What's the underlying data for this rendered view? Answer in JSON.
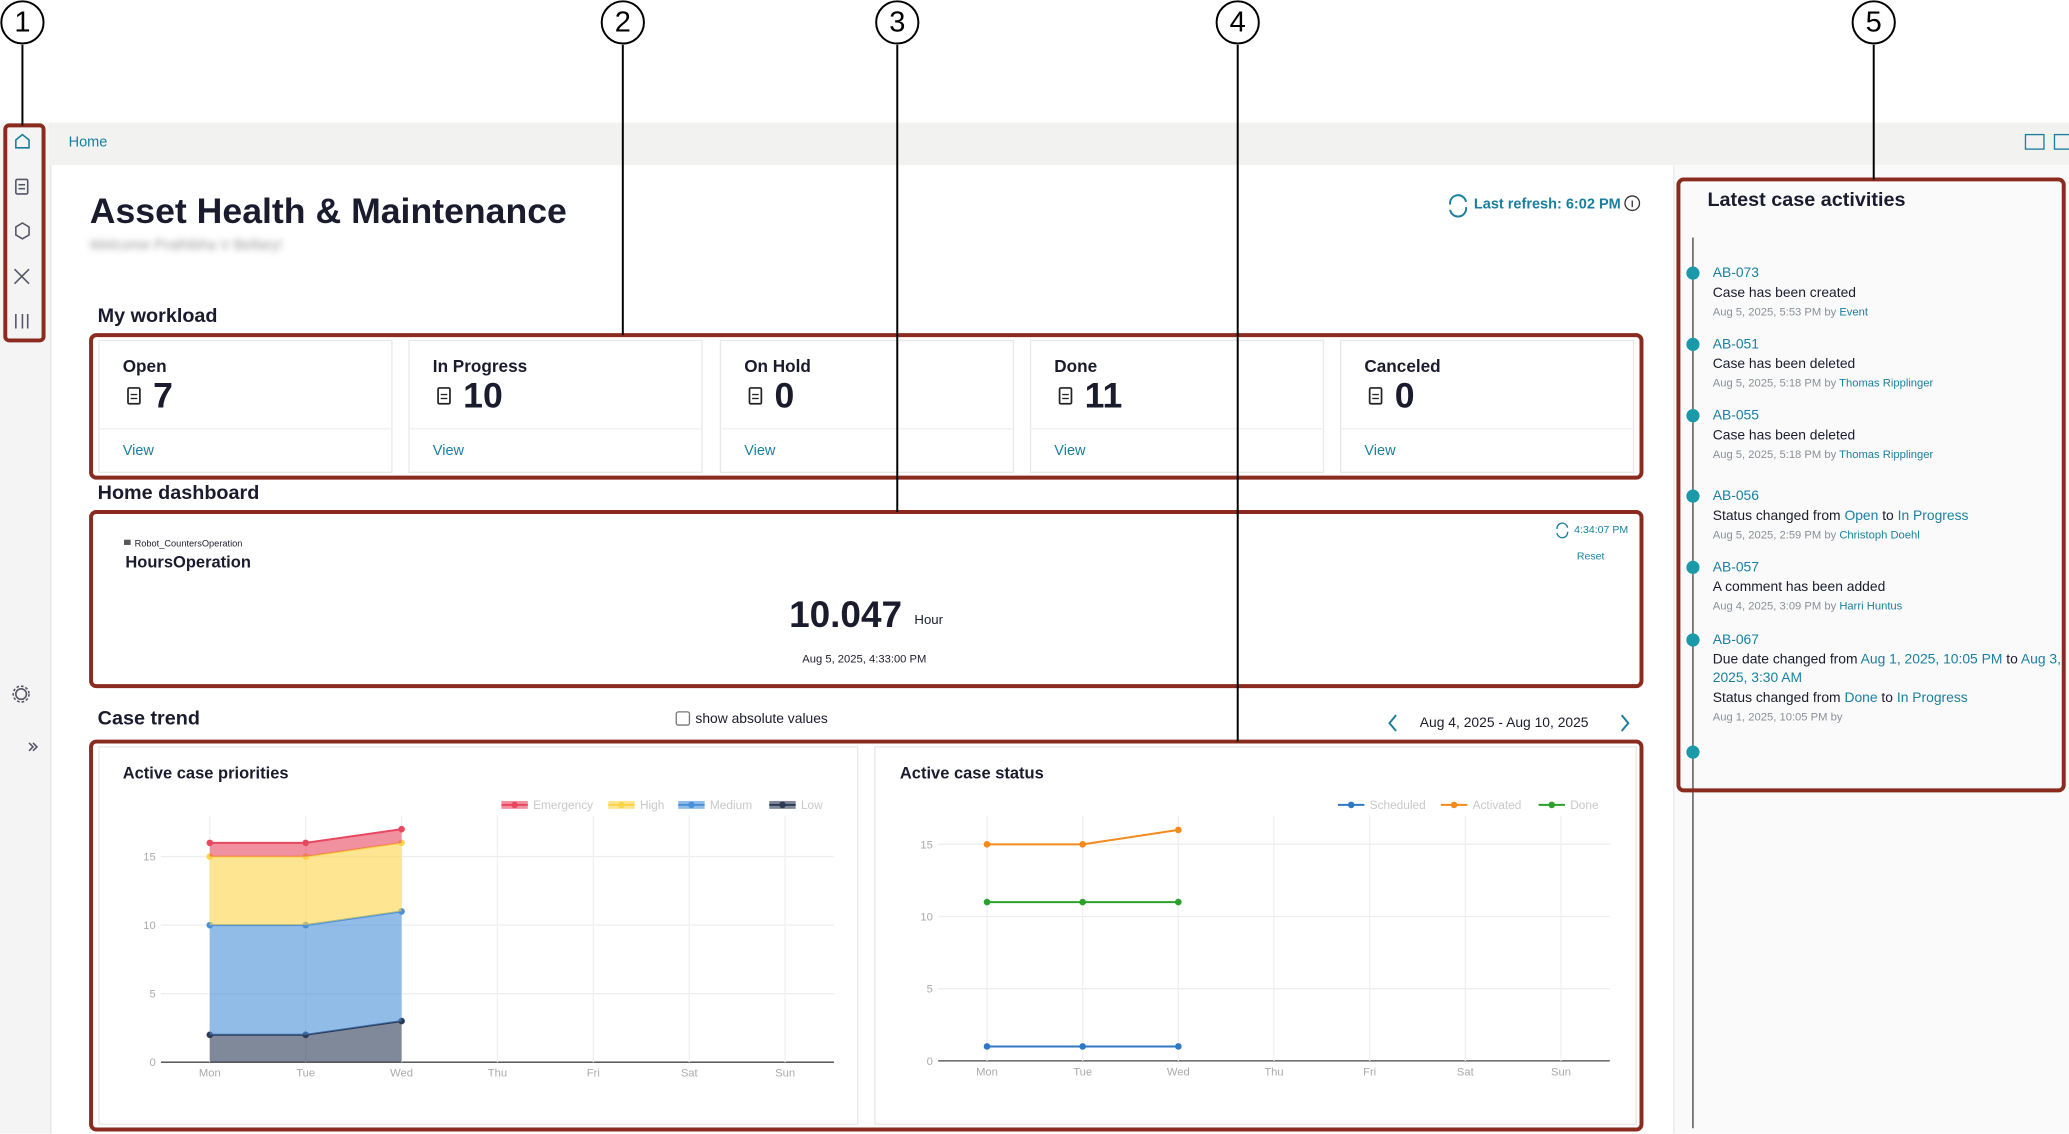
{
  "annotations": [
    "1",
    "2",
    "3",
    "4",
    "5"
  ],
  "breadcrumb": "Home",
  "header": {
    "title": "Asset Health & Maintenance",
    "subtitle": "Welcome Prathibha V Bellary!",
    "last_refresh": "Last refresh: 6:02 PM"
  },
  "workload": {
    "title": "My workload",
    "cards": [
      {
        "label": "Open",
        "count": 7,
        "action": "View"
      },
      {
        "label": "In Progress",
        "count": 10,
        "action": "View"
      },
      {
        "label": "On Hold",
        "count": 0,
        "action": "View"
      },
      {
        "label": "Done",
        "count": 11,
        "action": "View"
      },
      {
        "label": "Canceled",
        "count": 0,
        "action": "View"
      }
    ]
  },
  "dashboard": {
    "title": "Home dashboard",
    "widget": {
      "source": "Robot_CountersOperation",
      "name": "HoursOperation",
      "refresh_time": "4:34:07 PM",
      "reset": "Reset",
      "value": 10.047,
      "unit": "Hour",
      "timestamp": "Aug 5, 2025, 4:33:00 PM"
    }
  },
  "case_trend": {
    "title": "Case trend",
    "checkbox": "show absolute values",
    "date_range": "Aug 4, 2025 - Aug 10, 2025",
    "charts": [
      {
        "type": "area",
        "stacked": true,
        "title": "Active case priorities",
        "categories": [
          "Mon",
          "Tue",
          "Wed",
          "Thu",
          "Fri",
          "Sat",
          "Sun"
        ],
        "series": [
          {
            "name": "Emergency",
            "color": "#e8485f",
            "values": [
              1,
              1,
              1,
              null,
              null,
              null,
              null
            ]
          },
          {
            "name": "High",
            "color": "#fcd447",
            "values": [
              5,
              5,
              5,
              null,
              null,
              null,
              null
            ]
          },
          {
            "name": "Medium",
            "color": "#4a90d9",
            "values": [
              8,
              8,
              8,
              null,
              null,
              null,
              null
            ]
          },
          {
            "name": "Low",
            "color": "#2b3a55",
            "values": [
              2,
              2,
              3,
              null,
              null,
              null,
              null
            ]
          }
        ],
        "ylim": [
          0,
          18
        ],
        "yticks": [
          0,
          5,
          10,
          15
        ],
        "grid": true
      },
      {
        "type": "line",
        "title": "Active case status",
        "categories": [
          "Mon",
          "Tue",
          "Wed",
          "Thu",
          "Fri",
          "Sat",
          "Sun"
        ],
        "series": [
          {
            "name": "Scheduled",
            "color": "#2f78c4",
            "values": [
              1,
              1,
              1,
              null,
              null,
              null,
              null
            ]
          },
          {
            "name": "Activated",
            "color": "#f28a1c",
            "values": [
              15,
              15,
              16,
              null,
              null,
              null,
              null
            ]
          },
          {
            "name": "Done",
            "color": "#2ca02c",
            "values": [
              11,
              11,
              11,
              null,
              null,
              null,
              null
            ]
          }
        ],
        "ylim": [
          0,
          17
        ],
        "yticks": [
          0,
          5,
          10,
          15
        ],
        "grid": true
      }
    ]
  },
  "activities": {
    "title": "Latest case activities",
    "items": [
      {
        "id": "AB-073",
        "lines": [
          [
            {
              "text": "Case has been created"
            }
          ]
        ],
        "meta": "Aug 5, 2025, 5:53 PM by",
        "actor": "Event"
      },
      {
        "id": "AB-051",
        "lines": [
          [
            {
              "text": "Case has been deleted"
            }
          ]
        ],
        "meta": "Aug 5, 2025, 5:18 PM by",
        "actor": "Thomas Ripplinger"
      },
      {
        "id": "AB-055",
        "lines": [
          [
            {
              "text": "Case has been deleted"
            }
          ]
        ],
        "meta": "Aug 5, 2025, 5:18 PM by",
        "actor": "Thomas Ripplinger"
      },
      {
        "id": "AB-056",
        "lines": [
          [
            {
              "text": "Status changed from"
            },
            {
              "text": "Open",
              "link": true
            },
            {
              "text": "to"
            },
            {
              "text": "In Progress",
              "link": true
            }
          ]
        ],
        "meta": "Aug 5, 2025, 2:59 PM by",
        "actor": "Christoph Doehl"
      },
      {
        "id": "AB-057",
        "lines": [
          [
            {
              "text": "A comment has been added"
            }
          ]
        ],
        "meta": "Aug 4, 2025, 3:09 PM by",
        "actor": "Harri Huntus"
      },
      {
        "id": "AB-067",
        "lines": [
          [
            {
              "text": "Due date changed from"
            },
            {
              "text": "Aug 1, 2025, 10:05 PM",
              "link": true
            },
            {
              "text": "to"
            },
            {
              "text": "Aug 3, 2025, 3:30 AM",
              "link": true
            }
          ],
          [
            {
              "text": "Status changed from"
            },
            {
              "text": "Done",
              "link": true
            },
            {
              "text": "to"
            },
            {
              "text": "In Progress",
              "link": true
            }
          ]
        ],
        "meta": "Aug 1, 2025, 10:05 PM by"
      }
    ]
  }
}
